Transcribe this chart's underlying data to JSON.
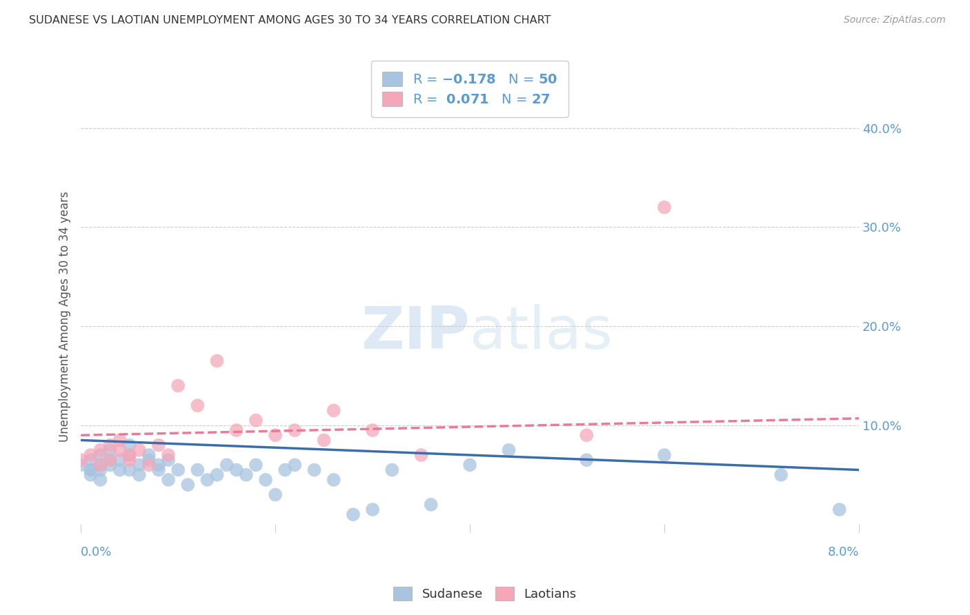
{
  "title": "SUDANESE VS LAOTIAN UNEMPLOYMENT AMONG AGES 30 TO 34 YEARS CORRELATION CHART",
  "source": "Source: ZipAtlas.com",
  "ylabel": "Unemployment Among Ages 30 to 34 years",
  "xlim": [
    0.0,
    0.08
  ],
  "ylim": [
    0.0,
    0.42
  ],
  "yticks": [
    0.0,
    0.1,
    0.2,
    0.3,
    0.4
  ],
  "ytick_labels": [
    "",
    "10.0%",
    "20.0%",
    "30.0%",
    "40.0%"
  ],
  "xticks": [
    0.0,
    0.02,
    0.04,
    0.06,
    0.08
  ],
  "sudanese_R": -0.178,
  "sudanese_N": 50,
  "laotian_R": 0.071,
  "laotian_N": 27,
  "sudanese_color": "#a8c4e0",
  "laotian_color": "#f4a7b9",
  "sudanese_line_color": "#3a6ea8",
  "laotian_line_color": "#e87a9a",
  "background_color": "#ffffff",
  "legend_sudanese_label": "Sudanese",
  "legend_laotian_label": "Laotians",
  "sudanese_x": [
    0.0,
    0.001,
    0.001,
    0.001,
    0.001,
    0.002,
    0.002,
    0.002,
    0.002,
    0.003,
    0.003,
    0.003,
    0.004,
    0.004,
    0.005,
    0.005,
    0.005,
    0.006,
    0.006,
    0.007,
    0.007,
    0.008,
    0.008,
    0.009,
    0.009,
    0.01,
    0.011,
    0.012,
    0.013,
    0.014,
    0.015,
    0.016,
    0.017,
    0.018,
    0.019,
    0.02,
    0.021,
    0.022,
    0.024,
    0.026,
    0.028,
    0.03,
    0.032,
    0.036,
    0.04,
    0.044,
    0.052,
    0.06,
    0.072,
    0.078
  ],
  "sudanese_y": [
    0.06,
    0.055,
    0.065,
    0.05,
    0.055,
    0.07,
    0.06,
    0.045,
    0.055,
    0.065,
    0.075,
    0.06,
    0.055,
    0.065,
    0.08,
    0.055,
    0.07,
    0.06,
    0.05,
    0.065,
    0.07,
    0.055,
    0.06,
    0.045,
    0.065,
    0.055,
    0.04,
    0.055,
    0.045,
    0.05,
    0.06,
    0.055,
    0.05,
    0.06,
    0.045,
    0.03,
    0.055,
    0.06,
    0.055,
    0.045,
    0.01,
    0.015,
    0.055,
    0.02,
    0.06,
    0.075,
    0.065,
    0.07,
    0.05,
    0.015
  ],
  "laotian_x": [
    0.0,
    0.001,
    0.002,
    0.002,
    0.003,
    0.003,
    0.004,
    0.004,
    0.005,
    0.005,
    0.006,
    0.007,
    0.008,
    0.009,
    0.01,
    0.012,
    0.014,
    0.016,
    0.018,
    0.02,
    0.022,
    0.025,
    0.026,
    0.03,
    0.035,
    0.052,
    0.06
  ],
  "laotian_y": [
    0.065,
    0.07,
    0.06,
    0.075,
    0.065,
    0.08,
    0.075,
    0.085,
    0.065,
    0.07,
    0.075,
    0.06,
    0.08,
    0.07,
    0.14,
    0.12,
    0.165,
    0.095,
    0.105,
    0.09,
    0.095,
    0.085,
    0.115,
    0.095,
    0.07,
    0.09,
    0.32
  ]
}
